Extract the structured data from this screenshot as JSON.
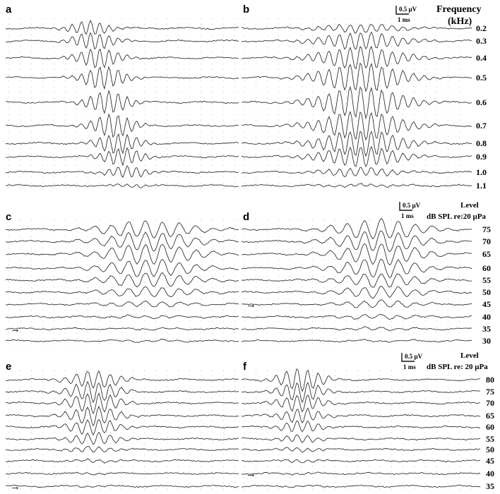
{
  "figure": {
    "panels": [
      {
        "id": "a",
        "label": "a",
        "labels_shown": false,
        "values": [
          "0.2",
          "0.3",
          "0.4",
          "0.5",
          "0.6",
          "0.7",
          "0.8",
          "0.9",
          "1.0",
          "1.1"
        ]
      },
      {
        "id": "b",
        "label": "b",
        "labels_shown": true,
        "header": "Frequency",
        "header2": "(kHz)",
        "scalebar": {
          "amp": "0.5 µV",
          "time": "1 ms"
        },
        "values": [
          "0.2",
          "0.3",
          "0.4",
          "0.5",
          "0.6",
          "0.7",
          "0.8",
          "0.9",
          "1.0",
          "1.1"
        ]
      },
      {
        "id": "c",
        "label": "c",
        "labels_shown": false,
        "arrow_row": 8,
        "values": [
          "75",
          "70",
          "65",
          "60",
          "55",
          "50",
          "45",
          "40",
          "35",
          "30"
        ]
      },
      {
        "id": "d",
        "label": "d",
        "labels_shown": true,
        "header": "Level",
        "header2": "dB SPL re:20 µPa",
        "scalebar": {
          "amp": "0.5 µV",
          "time": "1 ms"
        },
        "arrow_row": 6,
        "values": [
          "75",
          "70",
          "65",
          "60",
          "55",
          "50",
          "45",
          "40",
          "35",
          "30"
        ]
      },
      {
        "id": "e",
        "label": "e",
        "labels_shown": false,
        "arrow_row": 9,
        "values": [
          "80",
          "75",
          "70",
          "65",
          "60",
          "55",
          "50",
          "45",
          "40",
          "35"
        ]
      },
      {
        "id": "f",
        "label": "f",
        "labels_shown": true,
        "header": "Level",
        "header2": "dB SPL re: 20 µPa",
        "scalebar": {
          "amp": "0.5 µV",
          "time": "1 ms"
        },
        "arrow_row": 8,
        "values": [
          "80",
          "75",
          "70",
          "65",
          "60",
          "55",
          "50",
          "45",
          "40",
          "35"
        ]
      }
    ],
    "arrow_glyph": "→"
  }
}
